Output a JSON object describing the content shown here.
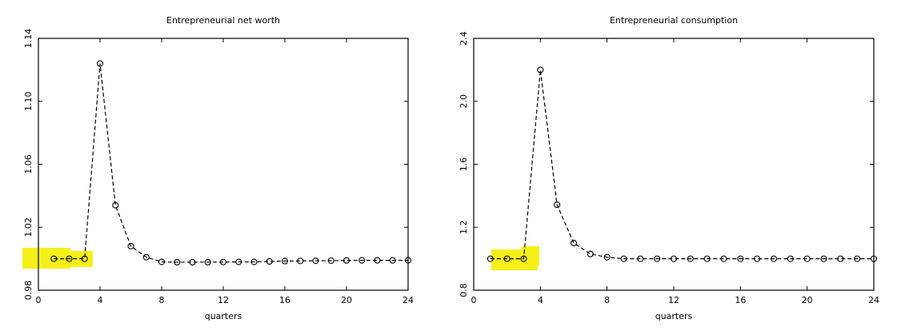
{
  "chart_data": [
    {
      "type": "line",
      "title": "Entrepreneurial net worth",
      "xlabel": "quarters",
      "x": [
        1,
        2,
        3,
        4,
        5,
        6,
        7,
        8,
        9,
        10,
        11,
        12,
        13,
        14,
        15,
        16,
        17,
        18,
        19,
        20,
        21,
        22,
        23,
        24
      ],
      "values": [
        1.0,
        1.0,
        1.0,
        1.124,
        1.034,
        1.008,
        1.001,
        0.998,
        0.9978,
        0.9978,
        0.9978,
        0.9979,
        0.998,
        0.998,
        0.9983,
        0.9985,
        0.9986,
        0.9987,
        0.9988,
        0.9989,
        0.999,
        0.999,
        0.999,
        0.999
      ],
      "color": "#000000",
      "xlim": [
        0,
        24
      ],
      "xticks": [
        0,
        4,
        8,
        12,
        16,
        20,
        24
      ],
      "ylim": [
        0.98,
        1.14
      ],
      "yticks": [
        0.98,
        1.02,
        1.06,
        {
          "value": 1.1,
          "label": "1.10"
        },
        1.14
      ]
    },
    {
      "type": "line",
      "title": "Entrepreneurial consumption",
      "xlabel": "quarters",
      "x": [
        1,
        2,
        3,
        4,
        5,
        6,
        7,
        8,
        9,
        10,
        11,
        12,
        13,
        14,
        15,
        16,
        17,
        18,
        19,
        20,
        21,
        22,
        23,
        24
      ],
      "values": [
        1.0,
        1.0,
        1.0,
        2.2,
        1.343,
        1.1,
        1.03,
        1.01,
        1.0,
        1.0,
        1.0,
        1.0,
        1.0,
        1.0,
        1.0,
        1.0,
        1.0,
        1.0,
        1.0,
        1.0,
        1.0,
        1.0,
        1.0,
        1.0
      ],
      "color": "#000000",
      "xlim": [
        0,
        24
      ],
      "xticks": [
        0,
        4,
        8,
        12,
        16,
        20,
        24
      ],
      "ylim": [
        0.8,
        2.4
      ],
      "yticks": [
        0.8,
        1.2,
        1.6,
        {
          "value": 2.0,
          "label": "2.0"
        },
        2.4
      ]
    }
  ]
}
